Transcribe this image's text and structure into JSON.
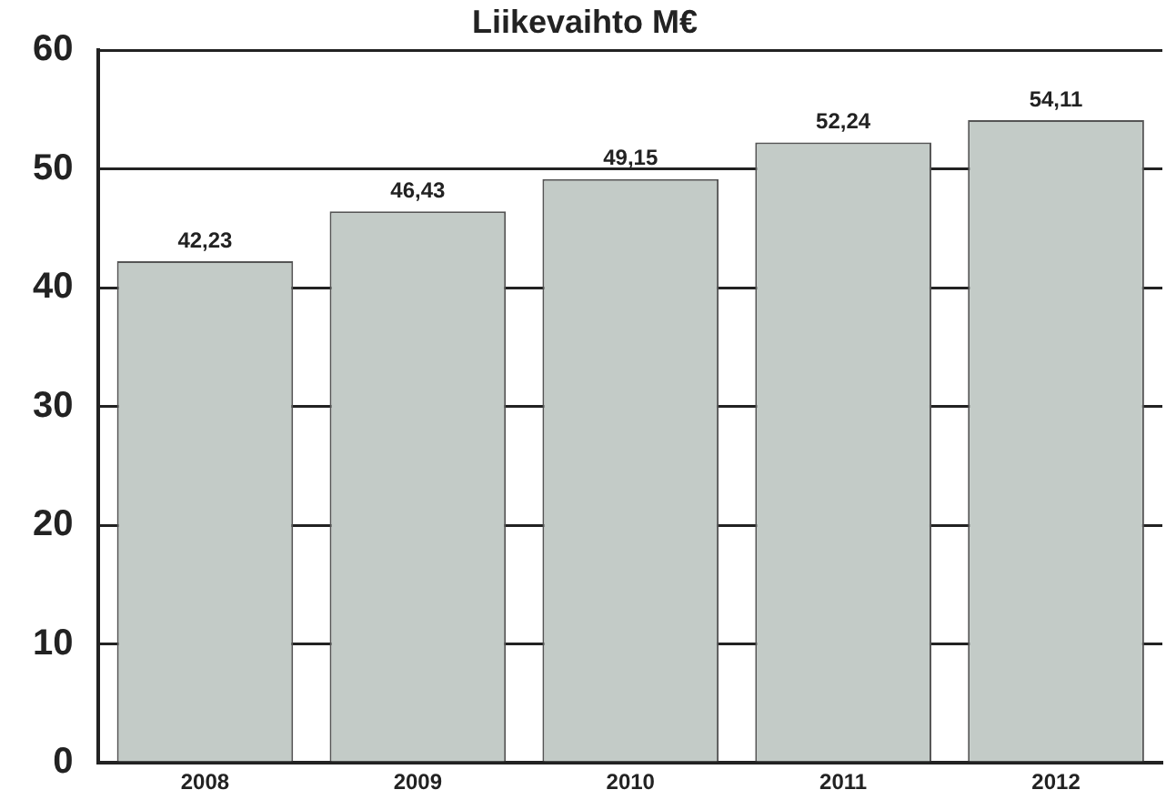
{
  "chart_data": {
    "type": "bar",
    "title": "Liikevaihto M€",
    "categories": [
      "2008",
      "2009",
      "2010",
      "2011",
      "2012"
    ],
    "values": [
      42.23,
      46.43,
      49.15,
      52.24,
      54.11
    ],
    "value_labels": [
      "42,23",
      "46,43",
      "49,15",
      "52,24",
      "54,11"
    ],
    "color": "#c3cbc7",
    "ylim": [
      0,
      60
    ],
    "yticks": [
      0,
      10,
      20,
      30,
      40,
      50,
      60
    ],
    "grid": "y"
  }
}
